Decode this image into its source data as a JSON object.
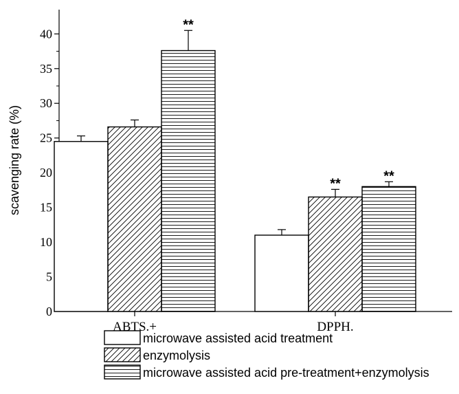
{
  "chart_data": {
    "type": "bar",
    "title": "",
    "xlabel": "",
    "ylabel": "scavenging rate (%)",
    "ylim": [
      0,
      43.5
    ],
    "yticks": [
      0,
      5,
      10,
      15,
      20,
      25,
      30,
      35,
      40
    ],
    "categories": [
      "ABTS.+",
      "DPPH."
    ],
    "series": [
      {
        "name": "microwave assisted acid treatment",
        "values": [
          24.5,
          11.0
        ],
        "errors": [
          0.8,
          0.8
        ],
        "significance": [
          "",
          ""
        ],
        "pattern": "none"
      },
      {
        "name": "enzymolysis",
        "values": [
          26.6,
          16.5
        ],
        "errors": [
          1.0,
          1.1
        ],
        "significance": [
          "",
          "**"
        ],
        "pattern": "diagonal"
      },
      {
        "name": "microwave assisted acid pre-treatment+enzymolysis",
        "values": [
          37.6,
          18.0
        ],
        "errors": [
          2.9,
          0.7
        ],
        "significance": [
          "**",
          "**"
        ],
        "pattern": "horizontal"
      }
    ],
    "grid": false,
    "legend_position": "bottom"
  }
}
